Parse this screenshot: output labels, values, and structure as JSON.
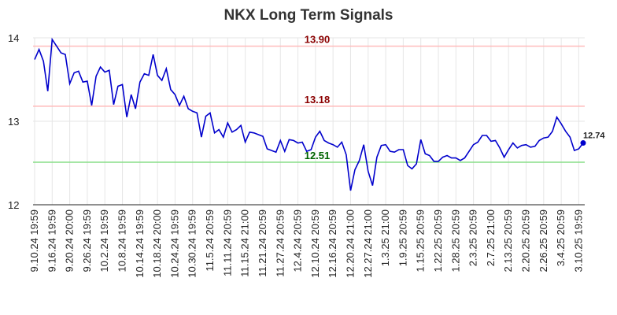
{
  "chart_data": {
    "type": "line",
    "title": "NKX Long Term Signals",
    "categories": [
      "9.10.24 19:59",
      null,
      null,
      null,
      "9.16.24 19:59",
      null,
      null,
      null,
      "9.20.24 20:00",
      null,
      null,
      null,
      "9.26.24 19:59",
      null,
      null,
      null,
      "10.2.24 19:59",
      null,
      null,
      null,
      "10.8.24 19:59",
      null,
      null,
      null,
      "10.14.24 19:59",
      null,
      null,
      null,
      "10.18.24 20:00",
      null,
      null,
      null,
      "10.24.24 19:59",
      null,
      null,
      null,
      "10.30.24 19:59",
      null,
      null,
      null,
      "11.5.24 20:59",
      null,
      null,
      null,
      "11.11.24 20:59",
      null,
      null,
      null,
      "11.15.24 21:00",
      null,
      null,
      null,
      "11.21.24 20:59",
      null,
      null,
      null,
      "11.27.24 20:59",
      null,
      null,
      null,
      "12.4.24 20:59",
      null,
      null,
      null,
      "12.10.24 20:59",
      null,
      null,
      null,
      "12.16.24 20:59",
      null,
      null,
      null,
      "12.20.24 21:00",
      null,
      null,
      null,
      "12.27.24 21:00",
      null,
      null,
      null,
      "1.3.25 21:00",
      null,
      null,
      null,
      "1.9.25 20:59",
      null,
      null,
      null,
      "1.15.25 20:59",
      null,
      null,
      null,
      "1.22.25 20:59",
      null,
      null,
      null,
      "1.28.25 20:59",
      null,
      null,
      null,
      "2.3.25 20:59",
      null,
      null,
      null,
      "2.7.25 21:00",
      null,
      null,
      null,
      "2.13.25 20:59",
      null,
      null,
      null,
      "2.20.25 20:59",
      null,
      null,
      null,
      "2.26.25 20:59",
      null,
      null,
      null,
      "3.4.25 20:59",
      null,
      null,
      null,
      "3.10.25 19:59",
      null
    ],
    "series": [
      {
        "color": "#0000cc",
        "values": [
          13.74,
          13.86,
          13.72,
          13.36,
          13.98,
          13.9,
          13.82,
          13.8,
          13.45,
          13.58,
          13.6,
          13.47,
          13.48,
          13.19,
          13.54,
          13.65,
          13.59,
          13.61,
          13.2,
          13.42,
          13.44,
          13.05,
          13.32,
          13.15,
          13.47,
          13.57,
          13.55,
          13.8,
          13.55,
          13.49,
          13.63,
          13.38,
          13.32,
          13.19,
          13.3,
          13.15,
          13.12,
          13.1,
          12.81,
          13.06,
          13.1,
          12.86,
          12.9,
          12.81,
          12.98,
          12.87,
          12.9,
          12.95,
          12.75,
          12.87,
          12.86,
          12.84,
          12.82,
          12.67,
          12.65,
          12.63,
          12.77,
          12.64,
          12.78,
          12.77,
          12.74,
          12.75,
          12.64,
          12.66,
          12.81,
          12.88,
          12.77,
          12.74,
          12.72,
          12.69,
          12.75,
          12.6,
          12.17,
          12.42,
          12.53,
          12.72,
          12.4,
          12.23,
          12.57,
          12.71,
          12.72,
          12.64,
          12.63,
          12.66,
          12.66,
          12.47,
          12.43,
          12.49,
          12.78,
          12.61,
          12.59,
          12.52,
          12.52,
          12.57,
          12.59,
          12.56,
          12.56,
          12.53,
          12.56,
          12.64,
          12.72,
          12.75,
          12.83,
          12.83,
          12.76,
          12.77,
          12.68,
          12.57,
          12.66,
          12.74,
          12.68,
          12.71,
          12.72,
          12.69,
          12.7,
          12.77,
          12.8,
          12.81,
          12.88,
          13.05,
          12.97,
          12.88,
          12.81,
          12.65,
          12.67,
          12.74
        ]
      }
    ],
    "hlines": [
      {
        "value": 13.9,
        "label": "13.90",
        "color": "#ffbbbb",
        "label_color": "#8b0000"
      },
      {
        "value": 13.18,
        "label": "13.18",
        "color": "#ffbbbb",
        "label_color": "#8b0000"
      },
      {
        "value": 12.51,
        "label": "12.51",
        "color": "#88dd88",
        "label_color": "#006400"
      }
    ],
    "ylim": [
      12,
      14
    ],
    "yticks": [
      12,
      13,
      14
    ],
    "grid": true
  }
}
